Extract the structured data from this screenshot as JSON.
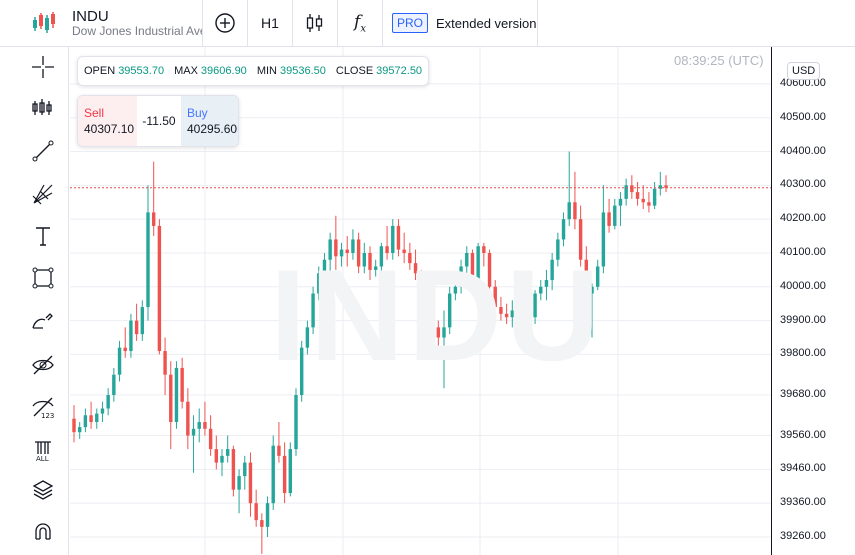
{
  "header": {
    "symbol": "INDU",
    "full_name": "Dow Jones Industrial Average",
    "timeframe": "H1",
    "pro_badge": "PRO",
    "extended_label": "Extended version"
  },
  "icons": {
    "logo": "candles-logo-icon",
    "add": "plus-circle-icon",
    "chart_type": "candlestick-icon",
    "indicators": "fx-icon",
    "tools": [
      "crosshair-icon",
      "indicator-bars-icon",
      "trend-line-icon",
      "fib-fan-icon",
      "text-icon",
      "rectangle-icon",
      "brush-icon",
      "eye-hide-icon",
      "eye-ruler-icon",
      "delete-all-icon",
      "layers-icon",
      "magnet-icon"
    ]
  },
  "timestamp": "08:39:25 (UTC)",
  "currency": "USD",
  "ohlc": {
    "open_label": "OPEN",
    "open": "39553.70",
    "max_label": "MAX",
    "max": "39606.90",
    "min_label": "MIN",
    "min": "39536.50",
    "close_label": "CLOSE",
    "close": "39572.50"
  },
  "trade": {
    "sell_label": "Sell",
    "sell_price": "40307.10",
    "spread": "-11.50",
    "buy_label": "Buy",
    "buy_price": "40295.60"
  },
  "watermark": "INDU",
  "colors": {
    "up": "#26a69a",
    "down": "#ef5350",
    "price_line": "#e34d4d",
    "accent": "#2962ff"
  },
  "chart_data": {
    "type": "candlestick",
    "title": "INDU",
    "current_price": 40293,
    "y_ticks": [
      {
        "value": 40600,
        "label": "40600.00"
      },
      {
        "value": 40500,
        "label": "40500.00"
      },
      {
        "value": 40400,
        "label": "40400.00"
      },
      {
        "value": 40300,
        "label": "40300.00"
      },
      {
        "value": 40200,
        "label": "40200.00"
      },
      {
        "value": 40100,
        "label": "40100.00"
      },
      {
        "value": 40000,
        "label": "40000.00"
      },
      {
        "value": 39900,
        "label": "39900.00"
      },
      {
        "value": 39800,
        "label": "39800.00"
      },
      {
        "value": 39680,
        "label": "39680.00"
      },
      {
        "value": 39560,
        "label": "39560.00"
      },
      {
        "value": 39460,
        "label": "39460.00"
      },
      {
        "value": 39360,
        "label": "39360.00"
      },
      {
        "value": 39260,
        "label": "39260.00"
      }
    ],
    "candles": [
      [
        39610,
        39650,
        39540,
        39570
      ],
      [
        39570,
        39600,
        39550,
        39585
      ],
      [
        39585,
        39640,
        39570,
        39620
      ],
      [
        39620,
        39660,
        39580,
        39600
      ],
      [
        39600,
        39640,
        39580,
        39625
      ],
      [
        39625,
        39660,
        39600,
        39640
      ],
      [
        39640,
        39700,
        39620,
        39680
      ],
      [
        39680,
        39760,
        39660,
        39740
      ],
      [
        39740,
        39840,
        39720,
        39820
      ],
      [
        39820,
        39880,
        39790,
        39810
      ],
      [
        39810,
        39920,
        39790,
        39900
      ],
      [
        39900,
        39950,
        39840,
        39860
      ],
      [
        39860,
        39960,
        39840,
        39940
      ],
      [
        39940,
        40300,
        39900,
        40220
      ],
      [
        40220,
        40370,
        40150,
        40180
      ],
      [
        40180,
        40200,
        39800,
        39810
      ],
      [
        39810,
        39850,
        39680,
        39740
      ],
      [
        39740,
        39780,
        39520,
        39600
      ],
      [
        39600,
        39780,
        39580,
        39760
      ],
      [
        39760,
        39790,
        39640,
        39660
      ],
      [
        39660,
        39700,
        39520,
        39560
      ],
      [
        39560,
        39620,
        39450,
        39580
      ],
      [
        39580,
        39640,
        39540,
        39600
      ],
      [
        39600,
        39660,
        39560,
        39580
      ],
      [
        39580,
        39620,
        39500,
        39520
      ],
      [
        39520,
        39560,
        39460,
        39480
      ],
      [
        39480,
        39520,
        39440,
        39500
      ],
      [
        39500,
        39560,
        39480,
        39520
      ],
      [
        39520,
        39530,
        39380,
        39400
      ],
      [
        39400,
        39460,
        39330,
        39440
      ],
      [
        39440,
        39500,
        39400,
        39480
      ],
      [
        39480,
        39510,
        39320,
        39360
      ],
      [
        39360,
        39400,
        39290,
        39310
      ],
      [
        39310,
        39330,
        39210,
        39290
      ],
      [
        39290,
        39380,
        39260,
        39360
      ],
      [
        39360,
        39560,
        39340,
        39530
      ],
      [
        39530,
        39600,
        39480,
        39500
      ],
      [
        39500,
        39540,
        39360,
        39390
      ],
      [
        39390,
        39540,
        39380,
        39520
      ],
      [
        39520,
        39700,
        39500,
        39680
      ],
      [
        39680,
        39840,
        39660,
        39820
      ],
      [
        39820,
        39900,
        39800,
        39880
      ],
      [
        39880,
        40000,
        39860,
        39980
      ],
      [
        39980,
        40060,
        39960,
        40040
      ],
      [
        40040,
        40100,
        40000,
        40080
      ],
      [
        40080,
        40160,
        40040,
        40140
      ],
      [
        40140,
        40210,
        40050,
        40090
      ],
      [
        40090,
        40130,
        40060,
        40110
      ],
      [
        40110,
        40150,
        40060,
        40100
      ],
      [
        40100,
        40170,
        40080,
        40140
      ],
      [
        40140,
        40160,
        40040,
        40060
      ],
      [
        40060,
        40130,
        40040,
        40100
      ],
      [
        40100,
        40120,
        40020,
        40050
      ],
      [
        40050,
        40080,
        40030,
        40060
      ],
      [
        40060,
        40130,
        40040,
        40120
      ],
      [
        40120,
        40180,
        40080,
        40100
      ],
      [
        40100,
        40200,
        40080,
        40180
      ],
      [
        40180,
        40200,
        40090,
        40110
      ],
      [
        40110,
        40160,
        40070,
        40100
      ],
      [
        40100,
        40130,
        40050,
        40070
      ],
      [
        40070,
        40110,
        40020,
        40040
      ],
      [
        40040,
        40050,
        39840,
        39860
      ],
      [
        39860,
        39960,
        39840,
        39940
      ],
      [
        39940,
        39970,
        39860,
        39880
      ],
      [
        39880,
        39900,
        39820,
        39850
      ],
      [
        39850,
        39930,
        39700,
        39880
      ],
      [
        39880,
        40000,
        39860,
        39980
      ],
      [
        39980,
        40020,
        39960,
        40000
      ],
      [
        40000,
        40080,
        39980,
        40060
      ],
      [
        40060,
        40120,
        40020,
        40100
      ],
      [
        40100,
        40110,
        40000,
        40020
      ],
      [
        40020,
        40130,
        40000,
        40120
      ],
      [
        40120,
        40130,
        40060,
        40100
      ],
      [
        40100,
        40110,
        39980,
        40000
      ],
      [
        40000,
        40020,
        39910,
        39940
      ],
      [
        39940,
        39970,
        39900,
        39920
      ],
      [
        39920,
        39950,
        39890,
        39910
      ],
      [
        39910,
        39960,
        39880,
        39930
      ],
      [
        39930,
        39940,
        39880,
        39900
      ],
      [
        39900,
        39920,
        39870,
        39890
      ],
      [
        39890,
        39930,
        39860,
        39910
      ],
      [
        39910,
        39990,
        39890,
        39980
      ],
      [
        39980,
        40020,
        39960,
        40000
      ],
      [
        40000,
        40050,
        39960,
        40020
      ],
      [
        40020,
        40100,
        39990,
        40080
      ],
      [
        40080,
        40160,
        40060,
        40140
      ],
      [
        40140,
        40220,
        40120,
        40200
      ],
      [
        40200,
        40400,
        40180,
        40250
      ],
      [
        40250,
        40340,
        40170,
        40200
      ],
      [
        40200,
        40240,
        40060,
        40080
      ],
      [
        40080,
        40120,
        39960,
        39980
      ],
      [
        39980,
        40010,
        39850,
        40000
      ],
      [
        40000,
        40080,
        39990,
        40060
      ],
      [
        40060,
        40300,
        40040,
        40220
      ],
      [
        40220,
        40260,
        40160,
        40180
      ],
      [
        40180,
        40260,
        40170,
        40240
      ],
      [
        40240,
        40280,
        40180,
        40260
      ],
      [
        40260,
        40320,
        40240,
        40300
      ],
      [
        40300,
        40330,
        40260,
        40280
      ],
      [
        40280,
        40310,
        40240,
        40260
      ],
      [
        40260,
        40300,
        40230,
        40250
      ],
      [
        40250,
        40280,
        40220,
        40240
      ],
      [
        40240,
        40310,
        40230,
        40290
      ],
      [
        40290,
        40340,
        40270,
        40300
      ],
      [
        40300,
        40330,
        40280,
        40293
      ]
    ]
  }
}
